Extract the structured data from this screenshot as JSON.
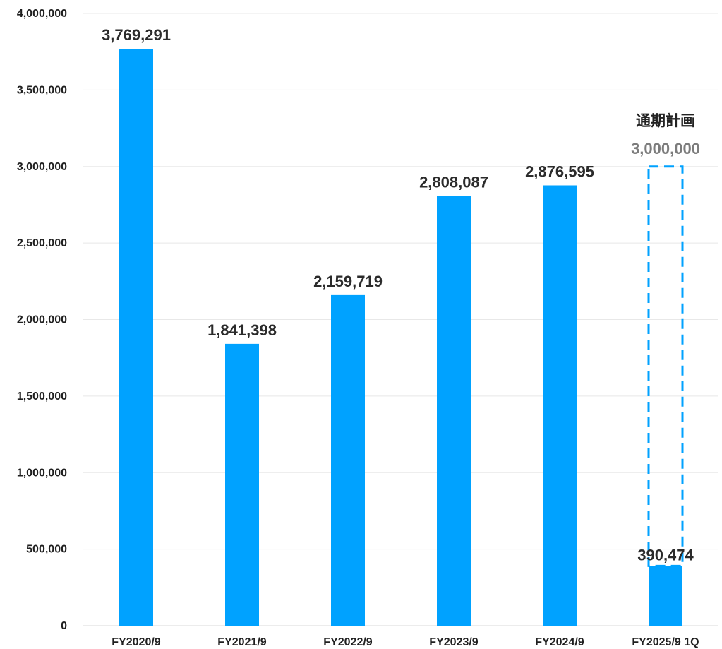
{
  "chart_data": {
    "type": "bar",
    "categories": [
      "FY2020/9",
      "FY2021/9",
      "FY2022/9",
      "FY2023/9",
      "FY2024/9",
      "FY2025/9 1Q"
    ],
    "values": [
      3769291,
      1841398,
      2159719,
      2808087,
      2876595,
      390474
    ],
    "data_labels": [
      "3,769,291",
      "1,841,398",
      "2,159,719",
      "2,808,087",
      "2,876,595",
      "390,474"
    ],
    "ylim": [
      0,
      4000000
    ],
    "yticks": [
      0,
      500000,
      1000000,
      1500000,
      2000000,
      2500000,
      3000000,
      3500000,
      4000000
    ],
    "ytick_labels": [
      "0",
      "500,000",
      "1,000,000",
      "1,500,000",
      "2,000,000",
      "2,500,000",
      "3,000,000",
      "3,500,000",
      "4,000,000"
    ],
    "grid": "horizontal",
    "plan": {
      "category": "FY2025/9 1Q",
      "title": "通期計画",
      "value": 3000000,
      "label": "3,000,000"
    },
    "colors": {
      "bar": "#00a2ff",
      "grid": "#e8e8e8",
      "axis": "#d9d9d9",
      "text": "#1f1f1f",
      "plan_value_text": "#7c7c7c"
    }
  }
}
